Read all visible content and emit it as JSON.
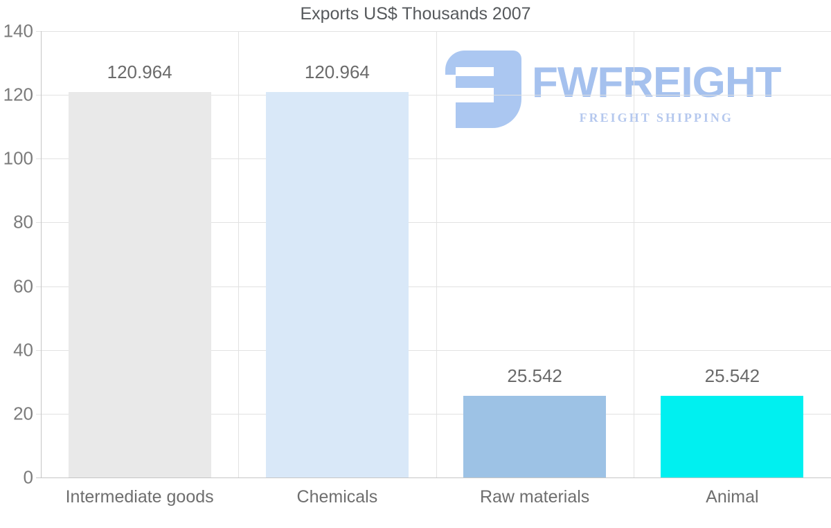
{
  "title": "Exports US$ Thousands 2007",
  "watermark": {
    "brand": "FWFREIGHT",
    "tagline": "FREIGHT SHIPPING",
    "brand_color": "#a5c1ee",
    "tagline_color": "#b5c8ee",
    "glyph_color": "#abc7f1"
  },
  "chart_data": {
    "type": "bar",
    "title": "Exports US$ Thousands 2007",
    "categories": [
      "Intermediate goods",
      "Chemicals",
      "Raw materials",
      "Animal"
    ],
    "values": [
      120.964,
      120.964,
      25.542,
      25.542
    ],
    "value_labels": [
      "120.964",
      "120.964",
      "25.542",
      "25.542"
    ],
    "bar_colors": [
      "#e9e9e9",
      "#d9e8f8",
      "#9dc2e5",
      "#00f0f0"
    ],
    "xlabel": "",
    "ylabel": "",
    "ylim": [
      0,
      140
    ],
    "yticks": [
      0,
      20,
      40,
      60,
      80,
      100,
      120,
      140
    ],
    "ytick_labels": [
      "0",
      "20",
      "40",
      "60",
      "80",
      "100",
      "120",
      "140"
    ],
    "grid": true,
    "legend_position": "none"
  }
}
